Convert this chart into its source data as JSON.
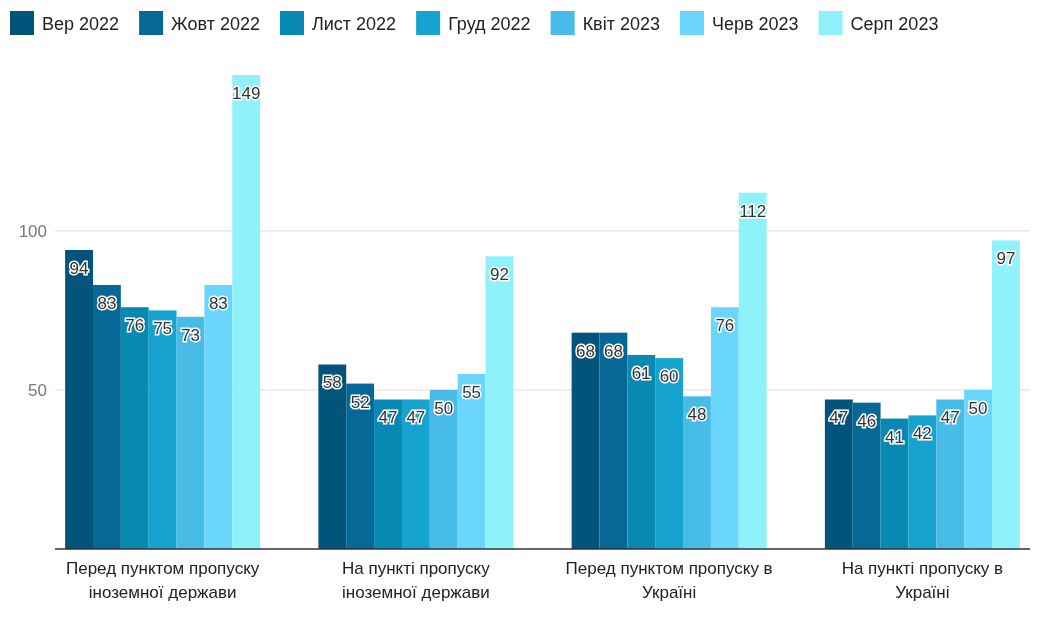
{
  "chart_data": {
    "type": "bar",
    "categories": [
      "Перед пунктом пропуску іноземної держави",
      "На пункті пропуску іноземної держави",
      "Перед пунктом пропуску в Україні",
      "На пункті пропуску в Україні"
    ],
    "series": [
      {
        "name": "Вер 2022",
        "color": "#03547a",
        "values": [
          94,
          58,
          68,
          47
        ]
      },
      {
        "name": "Жовт 2022",
        "color": "#066896",
        "values": [
          83,
          52,
          68,
          46
        ]
      },
      {
        "name": "Лист 2022",
        "color": "#0889b4",
        "values": [
          76,
          47,
          61,
          41
        ]
      },
      {
        "name": "Груд 2022",
        "color": "#16a3d0",
        "values": [
          75,
          47,
          60,
          42
        ]
      },
      {
        "name": "Квіт 2023",
        "color": "#47bce6",
        "values": [
          73,
          50,
          48,
          47
        ]
      },
      {
        "name": "Черв 2023",
        "color": "#6ad6fb",
        "values": [
          83,
          55,
          76,
          50
        ]
      },
      {
        "name": "Серп 2023",
        "color": "#8ff2fb",
        "values": [
          149,
          92,
          112,
          97
        ]
      }
    ],
    "ylim": [
      0,
      149
    ],
    "yticks": [
      50,
      100
    ],
    "grid": "y",
    "legend": "top",
    "data_labels": true
  }
}
